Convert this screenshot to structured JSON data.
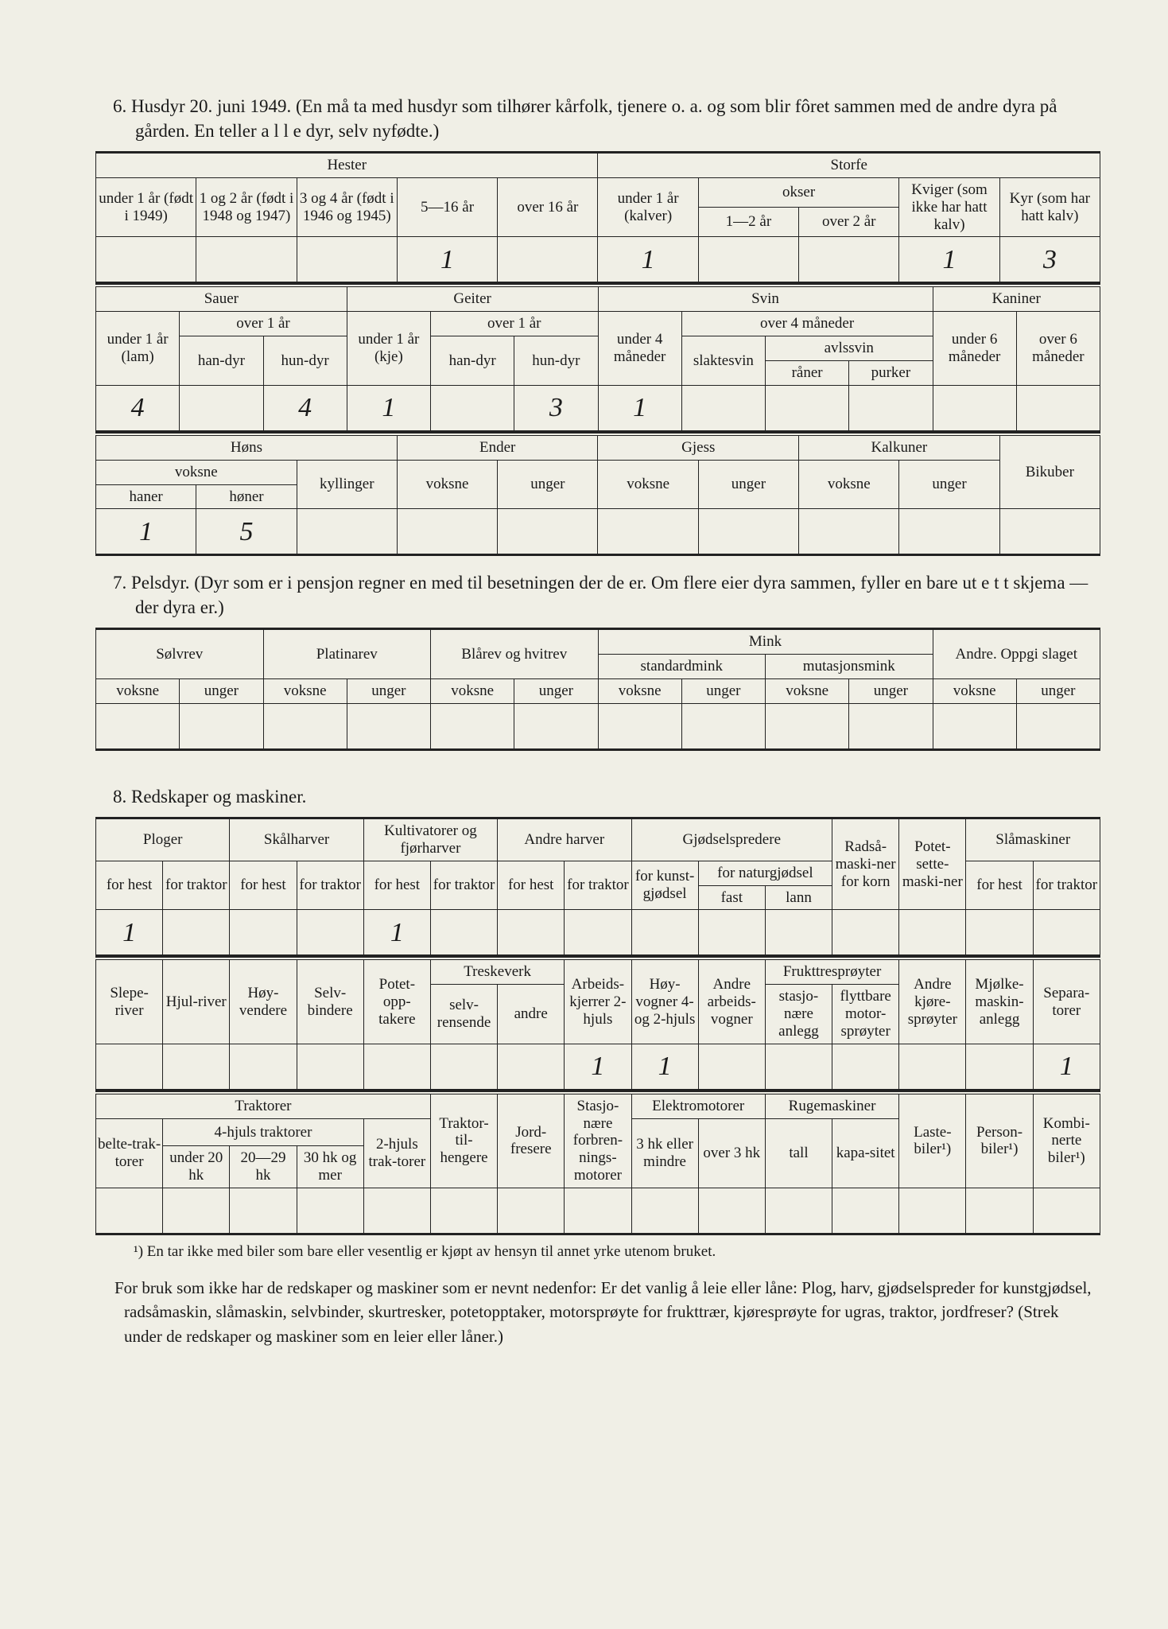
{
  "colors": {
    "page_bg": "#f0efe6",
    "outer_bg": "#e8e9e2",
    "ink": "#1a1a1a",
    "rule": "#222222",
    "handwriting": "#2a2a2a"
  },
  "typography": {
    "body_family": "Georgia, Times New Roman, serif",
    "body_size_pt": 17,
    "heading_size_pt": 17,
    "handwriting_family": "Brush Script MT, cursive",
    "handwriting_size_pt": 26
  },
  "section6": {
    "heading": "6. Husdyr 20. juni 1949. (En må ta med husdyr som tilhører kårfolk, tjenere o. a. og som blir fôret sammen med de andre dyra på gården.   En teller a l l e dyr, selv nyfødte.)",
    "tableA": {
      "group_headers": [
        "Hester",
        "Storfe"
      ],
      "hester": {
        "cols": [
          "under 1 år (født i 1949)",
          "1 og 2 år (født i 1948 og 1947)",
          "3 og 4 år (født i 1946 og 1945)",
          "5—16 år",
          "over 16 år"
        ]
      },
      "storfe": {
        "cols_top": [
          "under 1 år (kalver)",
          "okser",
          "Kviger (som ikke har hatt kalv)",
          "Kyr (som har hatt kalv)"
        ],
        "okser_sub": [
          "1—2 år",
          "over 2 år"
        ]
      },
      "values": [
        "",
        "",
        "",
        "1",
        "",
        "1",
        "",
        "",
        "1",
        "3"
      ]
    },
    "tableB": {
      "group_headers": [
        "Sauer",
        "Geiter",
        "Svin",
        "Kaniner"
      ],
      "sauer": {
        "col1": "under 1 år (lam)",
        "over1": "over 1 år",
        "sub": [
          "han-dyr",
          "hun-dyr"
        ]
      },
      "geiter": {
        "col1": "under 1 år (kje)",
        "over1": "over 1 år",
        "sub": [
          "han-dyr",
          "hun-dyr"
        ]
      },
      "svin": {
        "col1": "under 4 måneder",
        "over4": "over 4 måneder",
        "slaktesvin": "slaktesvin",
        "avlssvin": "avlssvin",
        "avlssvin_sub": [
          "råner",
          "purker"
        ]
      },
      "kaniner": {
        "cols": [
          "under 6 måneder",
          "over 6 måneder"
        ]
      },
      "values": [
        "4",
        "",
        "4",
        "1",
        "",
        "3",
        "1",
        "",
        "",
        "",
        "",
        ""
      ]
    },
    "tableC": {
      "group_headers": [
        "Høns",
        "Ender",
        "Gjess",
        "Kalkuner",
        "Bikuber"
      ],
      "hons": {
        "voksne": "voksne",
        "sub": [
          "haner",
          "høner"
        ],
        "kyllinger": "kyllinger"
      },
      "generic_cols": [
        "voksne",
        "unger"
      ],
      "values": [
        "1",
        "5",
        "",
        "",
        "",
        "",
        "",
        "",
        "",
        ""
      ]
    }
  },
  "section7": {
    "heading": "7. Pelsdyr. (Dyr som er i pensjon regner en med til besetningen der de er.   Om flere eier dyra sammen, fyller en bare ut e t t skjema — der dyra er.)",
    "group_headers": [
      "Sølvrev",
      "Platinarev",
      "Blårev og hvitrev",
      "Mink",
      "Andre. Oppgi slaget"
    ],
    "mink_sub": [
      "standardmink",
      "mutasjonsmink"
    ],
    "col_pair": [
      "voksne",
      "unger"
    ],
    "values": [
      "",
      "",
      "",
      "",
      "",
      "",
      "",
      "",
      "",
      "",
      "",
      ""
    ]
  },
  "section8": {
    "heading": "8. Redskaper og maskiner.",
    "tableA": {
      "groups": [
        {
          "label": "Ploger",
          "sub": [
            "for hest",
            "for traktor"
          ]
        },
        {
          "label": "Skålharver",
          "sub": [
            "for hest",
            "for traktor"
          ]
        },
        {
          "label": "Kultivatorer og fjørharver",
          "sub": [
            "for hest",
            "for traktor"
          ]
        },
        {
          "label": "Andre harver",
          "sub": [
            "for hest",
            "for traktor"
          ]
        },
        {
          "label": "Gjødselspredere",
          "sub": [
            "for kunst-gjødsel",
            "for naturgjødsel"
          ],
          "natur_sub": [
            "fast",
            "lann"
          ]
        },
        {
          "label": "Radså-maski-ner for korn"
        },
        {
          "label": "Potet-sette-maski-ner"
        },
        {
          "label": "Slåmaskiner",
          "sub": [
            "for hest",
            "for traktor"
          ]
        }
      ],
      "values": [
        "1",
        "",
        "",
        "",
        "1",
        "",
        "",
        "",
        "",
        "",
        "",
        "",
        "",
        "",
        ""
      ]
    },
    "tableB": {
      "groups": [
        "Slepe-river",
        "Hjul-river",
        "Høy-vendere",
        "Selv-bindere",
        "Potet-opp-takere",
        "Treskeverk",
        "Arbeids-kjerrer 2-hjuls",
        "Høy-vogner 4- og 2-hjuls",
        "Andre arbeids-vogner",
        "Frukttresprøyter",
        "Andre kjøre-sprøyter",
        "Mjølke-maskin-anlegg",
        "Separa-torer"
      ],
      "treskeverk_sub": [
        "selv-rensende",
        "andre"
      ],
      "frukt_sub": [
        "stasjo-nære anlegg",
        "flyttbare motor-sprøyter"
      ],
      "values": [
        "",
        "",
        "",
        "",
        "",
        "",
        "",
        "1",
        "1",
        "",
        "",
        "",
        "",
        "",
        "1"
      ]
    },
    "tableC": {
      "groups": [
        "Traktorer",
        "Traktor-til-hengere",
        "Jord-fresere",
        "Stasjo-nære forbren-nings-motorer",
        "Elektromotorer",
        "Rugemaskiner",
        "Laste-biler¹)",
        "Person-biler¹)",
        "Kombi-nerte biler¹)"
      ],
      "traktor_sub": {
        "belte": "belte-trak-torer",
        "fourwheel": "4-hjuls traktorer",
        "fourwheel_sub": [
          "under 20 hk",
          "20—29 hk",
          "30 hk og mer"
        ],
        "twowheel": "2-hjuls trak-torer"
      },
      "elektro_sub": [
        "3 hk eller mindre",
        "over 3 hk"
      ],
      "ruge_sub": [
        "tall",
        "kapa-sitet"
      ],
      "values": [
        "",
        "",
        "",
        "",
        "",
        "",
        "",
        "",
        "",
        "",
        "",
        "",
        "",
        "",
        ""
      ]
    },
    "footnote": "¹) En tar ikke med biler som bare eller vesentlig er kjøpt av hensyn til annet yrke utenom bruket.",
    "notes": "For bruk som ikke har de redskaper og maskiner som er nevnt nedenfor: Er det vanlig å leie eller låne: Plog, harv, gjødselspreder for kunstgjødsel, radsåmaskin, slåmaskin, selvbinder, skurtresker, potetopptaker, motorsprøyte for frukttrær, kjøresprøyte for ugras, traktor, jordfreser? (Strek under de redskaper og maskiner som en leier eller låner.)"
  }
}
